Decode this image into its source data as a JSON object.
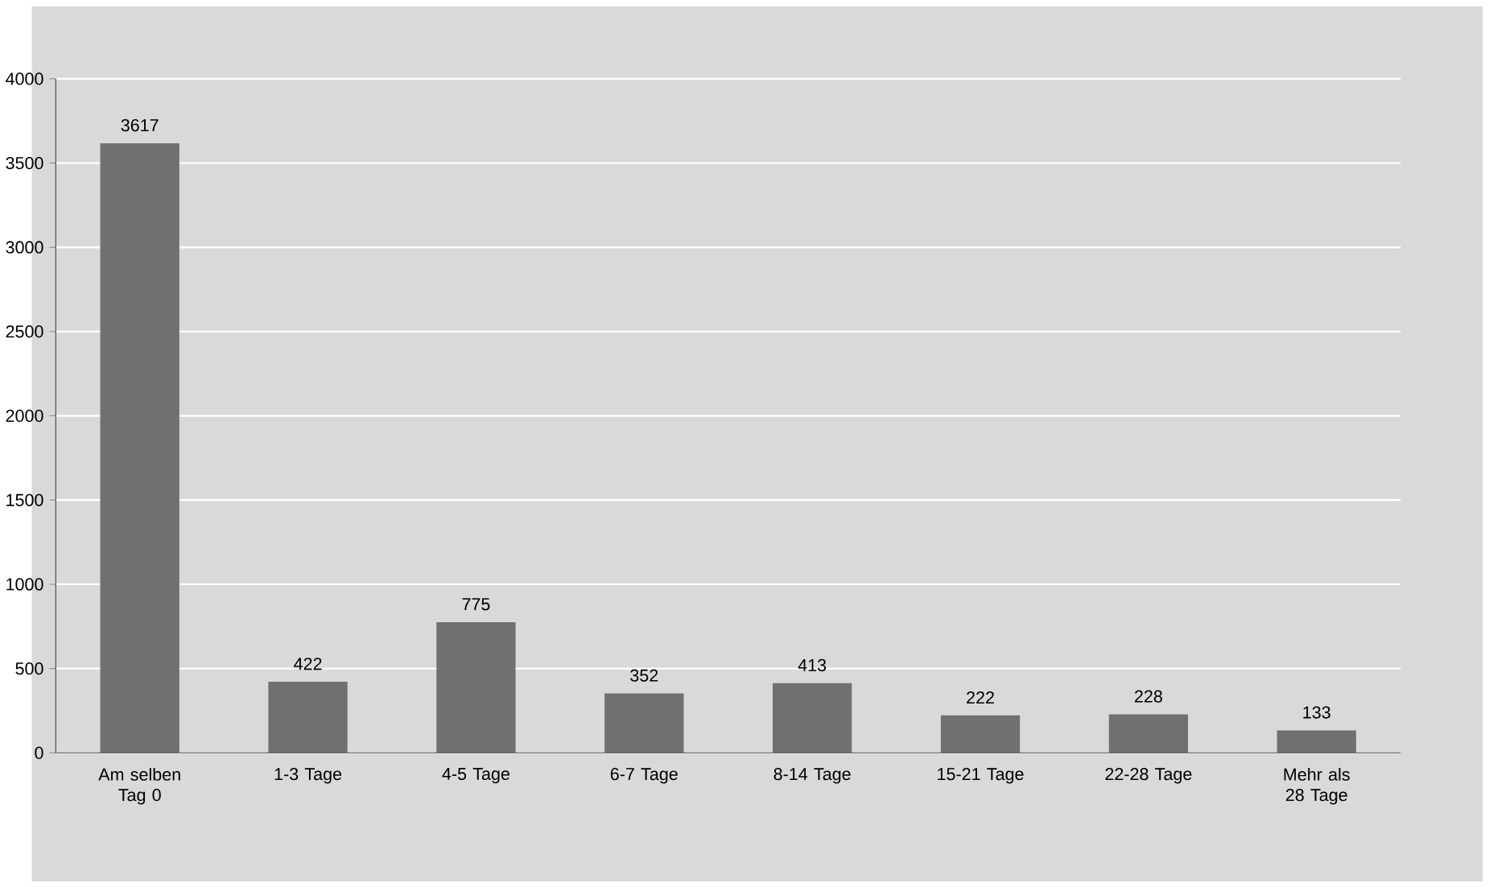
{
  "chart_data": {
    "type": "bar",
    "categories": [
      "Am selben Tag 0",
      "1-3 Tage",
      "4-5 Tage",
      "6-7 Tage",
      "8-14 Tage",
      "15-21 Tage",
      "22-28 Tage",
      "Mehr als 28 Tage"
    ],
    "values": [
      3617,
      422,
      775,
      352,
      413,
      222,
      228,
      133
    ],
    "color": "#707070",
    "ylim": [
      0,
      4000
    ],
    "yticks": [
      0,
      500,
      1000,
      1500,
      2000,
      2500,
      3000,
      3500,
      4000
    ],
    "grid": "y",
    "data_labels": true
  }
}
